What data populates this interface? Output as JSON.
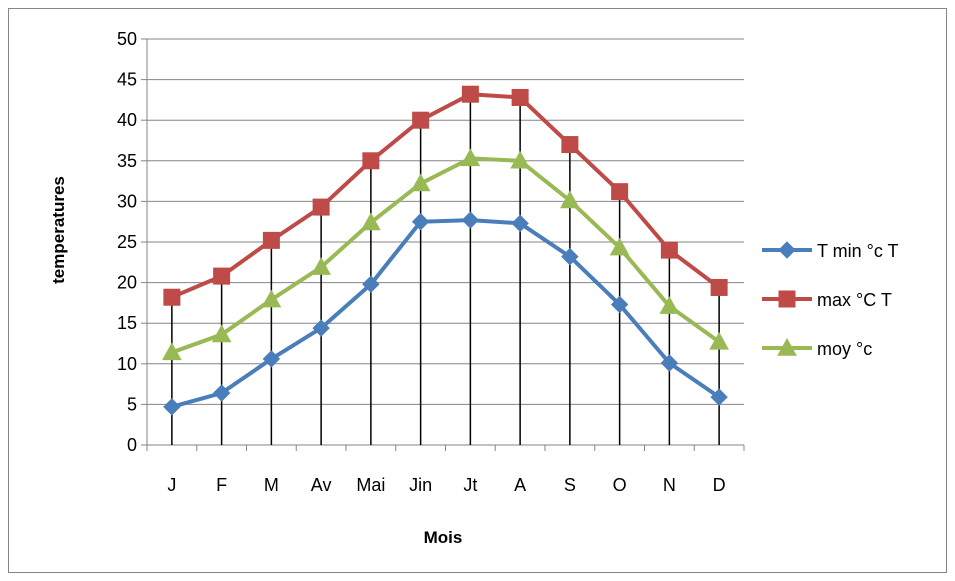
{
  "chart_data": {
    "type": "line",
    "title": "",
    "xlabel": "Mois",
    "ylabel": "temperatures",
    "categories": [
      "J",
      "F",
      "M",
      "Av",
      "Mai",
      "Jin",
      "Jt",
      "A",
      "S",
      "O",
      "N",
      "D"
    ],
    "ylim": [
      0,
      50
    ],
    "yticks": [
      0,
      5,
      10,
      15,
      20,
      25,
      30,
      35,
      40,
      45,
      50
    ],
    "grid": true,
    "legend_position": "right",
    "drop_lines": true,
    "series": [
      {
        "name": "T min °c T",
        "color": "#4A7EBB",
        "marker": "diamond",
        "values": [
          4.7,
          6.4,
          10.6,
          14.4,
          19.8,
          27.5,
          27.7,
          27.3,
          23.2,
          17.3,
          10.1,
          5.9
        ]
      },
      {
        "name": "max  °C  T",
        "color": "#BE4B48",
        "marker": "square",
        "values": [
          18.2,
          20.8,
          25.2,
          29.3,
          35.0,
          40.0,
          43.2,
          42.8,
          37.0,
          31.2,
          24.0,
          19.4
        ]
      },
      {
        "name": "moy °c",
        "color": "#98B954",
        "marker": "triangle",
        "values": [
          11.4,
          13.6,
          17.9,
          21.9,
          27.4,
          32.2,
          35.3,
          35.0,
          30.1,
          24.3,
          17.1,
          12.7
        ]
      }
    ]
  }
}
